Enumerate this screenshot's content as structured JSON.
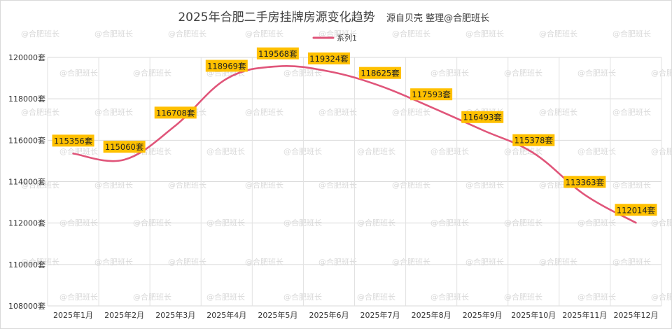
{
  "chart_data": {
    "type": "line",
    "title": "2025年合肥二手房挂牌房源变化趋势",
    "subtitle": "源自贝壳 整理@合肥班长",
    "categories": [
      "2025年1月",
      "2025年2月",
      "2025年3月",
      "2025年4月",
      "2025年5月",
      "2025年6月",
      "2025年7月",
      "2025年8月",
      "2025年9月",
      "2025年10月",
      "2025年11月",
      "2025年12月"
    ],
    "series": [
      {
        "name": "系列1",
        "values": [
          115356,
          115060,
          116708,
          118969,
          119568,
          119324,
          118625,
          117593,
          116493,
          115378,
          113363,
          112014
        ],
        "labels": [
          "115356套",
          "115060套",
          "116708套",
          "118969套",
          "119568套",
          "119324套",
          "118625套",
          "117593套",
          "116493套",
          "115378套",
          "113363套",
          "112014套"
        ],
        "color": "#e0557a"
      }
    ],
    "y_ticks": [
      "108000套",
      "110000套",
      "112000套",
      "114000套",
      "116000套",
      "118000套",
      "120000套"
    ],
    "ylim": [
      108000,
      120000
    ],
    "ylabel": "",
    "xlabel": "",
    "grid": true,
    "legend_position": "top-center",
    "label_bg_color": "#ffc000",
    "watermark": "@合肥班长"
  }
}
